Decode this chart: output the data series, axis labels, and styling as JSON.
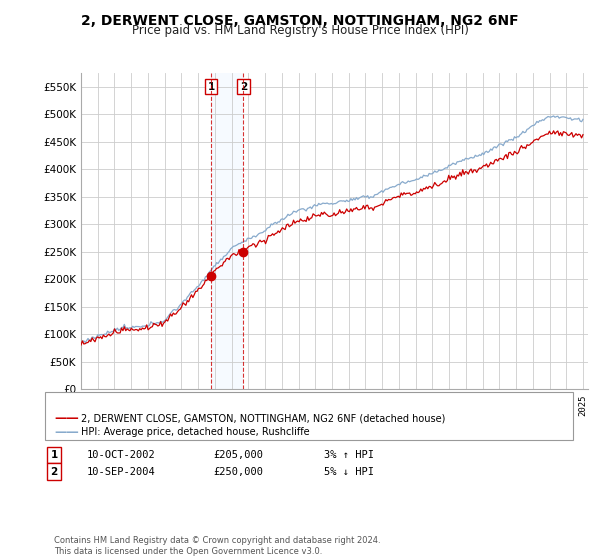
{
  "title": "2, DERWENT CLOSE, GAMSTON, NOTTINGHAM, NG2 6NF",
  "subtitle": "Price paid vs. HM Land Registry's House Price Index (HPI)",
  "ylim": [
    0,
    575000
  ],
  "yticks": [
    0,
    50000,
    100000,
    150000,
    200000,
    250000,
    300000,
    350000,
    400000,
    450000,
    500000,
    550000
  ],
  "ytick_labels": [
    "£0",
    "£50K",
    "£100K",
    "£150K",
    "£200K",
    "£250K",
    "£300K",
    "£350K",
    "£400K",
    "£450K",
    "£500K",
    "£550K"
  ],
  "line_color_red": "#cc0000",
  "line_color_blue": "#88aacc",
  "marker_color": "#cc0000",
  "sale1_date": 2002.78,
  "sale1_price": 205000,
  "sale2_date": 2004.7,
  "sale2_price": 250000,
  "legend_red_label": "2, DERWENT CLOSE, GAMSTON, NOTTINGHAM, NG2 6NF (detached house)",
  "legend_blue_label": "HPI: Average price, detached house, Rushcliffe",
  "table_row1": [
    "1",
    "10-OCT-2002",
    "£205,000",
    "3% ↑ HPI"
  ],
  "table_row2": [
    "2",
    "10-SEP-2004",
    "£250,000",
    "5% ↓ HPI"
  ],
  "footnote": "Contains HM Land Registry data © Crown copyright and database right 2024.\nThis data is licensed under the Open Government Licence v3.0.",
  "bg_color": "#ffffff",
  "grid_color": "#cccccc",
  "title_fontsize": 10,
  "subtitle_fontsize": 8.5,
  "span_color": "#ddeeff"
}
